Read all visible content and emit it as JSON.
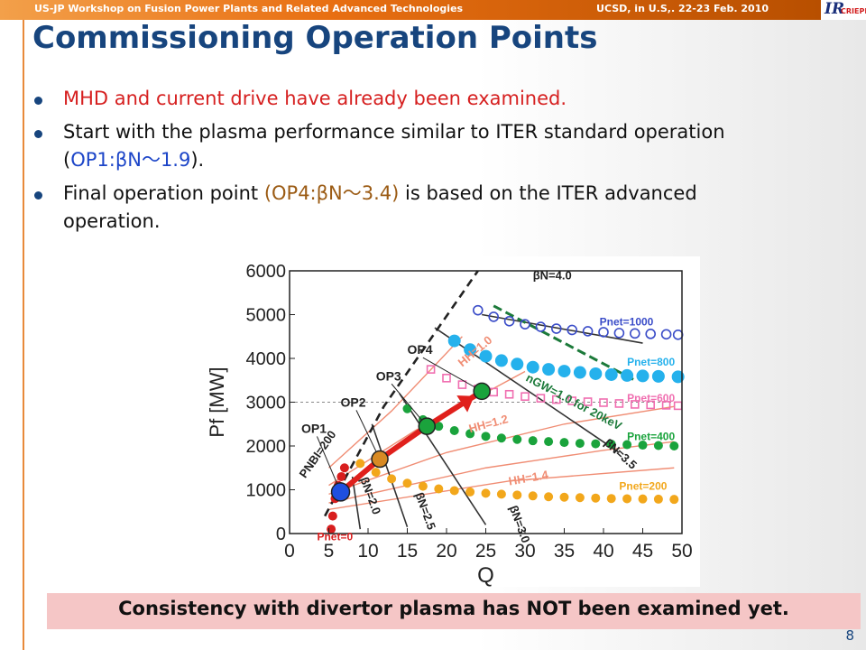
{
  "header": {
    "workshop": "US-JP  Workshop on Fusion Power Plants and Related Advanced Technologies",
    "venue": "UCSD, in U.S,. 22-23 Feb. 2010",
    "logo_text": "IR",
    "logo_sub": "CRIEPI"
  },
  "slide": {
    "title": "Commissioning Operation Points",
    "bullets": [
      {
        "text": "MHD and current drive have already been examined."
      },
      {
        "text_before": "Start with the plasma performance similar to ITER standard operation (",
        "highlight": "OP1:βN～1.9",
        "text_after": ")."
      },
      {
        "text_before": "Final operation point ",
        "highlight": "(OP4:βN～3.4)",
        "text_after": " is based on the ITER advanced operation."
      }
    ],
    "footer_note": "Consistency with divertor plasma has NOT been examined yet.",
    "page_number": "8"
  },
  "chart_data": {
    "type": "scatter",
    "xlabel": "Q",
    "ylabel": "Pf [MW]",
    "xlim": [
      0,
      50
    ],
    "ylim": [
      0,
      6000
    ],
    "xticks": [
      0,
      5,
      10,
      15,
      20,
      25,
      30,
      35,
      40,
      45,
      50
    ],
    "yticks": [
      0,
      1000,
      2000,
      3000,
      4000,
      5000,
      6000
    ],
    "series": [
      {
        "name": "Pnet=0",
        "color": "#d81e1e",
        "x": [
          5.3,
          5.5,
          5.8,
          6.2,
          6.6,
          7.0
        ],
        "y": [
          100,
          400,
          800,
          1100,
          1300,
          1500
        ]
      },
      {
        "name": "Pnet=200",
        "color": "#f2a71b",
        "x": [
          9,
          11,
          13,
          15,
          17,
          19,
          21,
          23,
          25,
          27,
          29,
          31,
          33,
          35,
          37,
          39,
          41,
          43,
          45,
          47,
          49
        ],
        "y": [
          1600,
          1400,
          1250,
          1150,
          1080,
          1020,
          980,
          950,
          920,
          900,
          880,
          860,
          840,
          830,
          820,
          810,
          800,
          795,
          790,
          785,
          780
        ]
      },
      {
        "name": "Pnet=400",
        "color": "#1aa33c",
        "x": [
          15,
          17,
          19,
          21,
          23,
          25,
          27,
          29,
          31,
          33,
          35,
          37,
          39,
          41,
          43,
          45,
          47,
          49
        ],
        "y": [
          2850,
          2600,
          2450,
          2350,
          2280,
          2220,
          2180,
          2150,
          2120,
          2100,
          2080,
          2060,
          2050,
          2040,
          2030,
          2020,
          2010,
          2000
        ]
      },
      {
        "name": "Pnet=600",
        "color": "#f06eb0",
        "x": [
          18,
          20,
          22,
          24,
          26,
          28,
          30,
          32,
          34,
          36,
          38,
          40,
          42,
          44,
          46,
          48,
          49.5
        ],
        "y": [
          3750,
          3550,
          3400,
          3300,
          3230,
          3180,
          3130,
          3090,
          3060,
          3030,
          3010,
          2990,
          2970,
          2950,
          2940,
          2930,
          2920
        ]
      },
      {
        "name": "Pnet=800",
        "color": "#25b1ec",
        "x": [
          21,
          23,
          25,
          27,
          29,
          31,
          33,
          35,
          37,
          39,
          41,
          43,
          45,
          47,
          49.5
        ],
        "y": [
          4400,
          4200,
          4050,
          3950,
          3870,
          3800,
          3750,
          3710,
          3680,
          3650,
          3630,
          3610,
          3600,
          3590,
          3580
        ]
      },
      {
        "name": "Pnet=1000",
        "color": "#3a4cc8",
        "x": [
          24,
          26,
          28,
          30,
          32,
          34,
          36,
          38,
          40,
          42,
          44,
          46,
          48,
          49.5
        ],
        "y": [
          5100,
          4950,
          4850,
          4780,
          4720,
          4680,
          4650,
          4620,
          4600,
          4580,
          4570,
          4560,
          4550,
          4540
        ]
      }
    ],
    "line_labels": [
      "βN=4.0",
      "βN=3.5",
      "βN=3.0",
      "βN=2.5",
      "βN=2.0",
      "HH=1.0",
      "HH=1.2",
      "HH=1.4",
      "nGW=1.0 for 20keV",
      "PNBI=200"
    ],
    "power_labels": [
      "Pnet=1000",
      "Pnet=800",
      "Pnet=600",
      "Pnet=400",
      "Pnet=200",
      "Pnet=0"
    ],
    "operation_points": [
      {
        "label": "OP1",
        "x": 6.5,
        "y": 950,
        "color": "#1f4fe0"
      },
      {
        "label": "OP2",
        "x": 11.5,
        "y": 1700,
        "color": "#d88a24"
      },
      {
        "label": "OP3",
        "x": 17.5,
        "y": 2450,
        "color": "#1aa33c"
      },
      {
        "label": "OP4",
        "x": 24.5,
        "y": 3250,
        "color": "#1aa33c"
      }
    ],
    "reference_line_y": 3000
  }
}
